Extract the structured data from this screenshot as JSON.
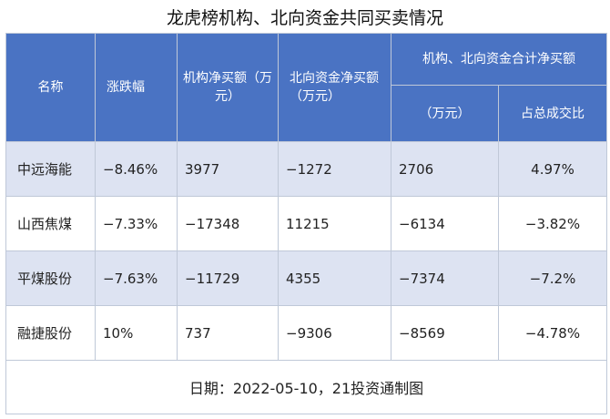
{
  "title": "龙虎榜机构、北向资金共同买卖情况",
  "header": {
    "name": "名称",
    "change": "涨跌幅",
    "inst_net": "机构净买额（万元）",
    "north_net": "北向资金净买额（万元）",
    "combined": "机构、北向资金合计净买额",
    "combined_amount": "（万元）",
    "share": "占总成交比"
  },
  "rows": [
    {
      "name": "中远海能",
      "change": "−8.46%",
      "inst_net": "3977",
      "north_net": "−1272",
      "combined": "2706",
      "share": "4.97%"
    },
    {
      "name": "山西焦煤",
      "change": "−7.33%",
      "inst_net": "−17348",
      "north_net": "11215",
      "combined": "−6134",
      "share": "−3.82%"
    },
    {
      "name": "平煤股份",
      "change": "−7.63%",
      "inst_net": "−11729",
      "north_net": "4355",
      "combined": "−7374",
      "share": "−7.2%"
    },
    {
      "name": "融捷股份",
      "change": "10%",
      "inst_net": "737",
      "north_net": "−9306",
      "combined": "−8569",
      "share": "−4.78%"
    }
  ],
  "footer": "日期：2022-05-10，21投资通制图",
  "colors": {
    "header_bg": "#4a73c3",
    "row_alt_bg": "#dde3f2",
    "border": "#bfc8d8"
  }
}
